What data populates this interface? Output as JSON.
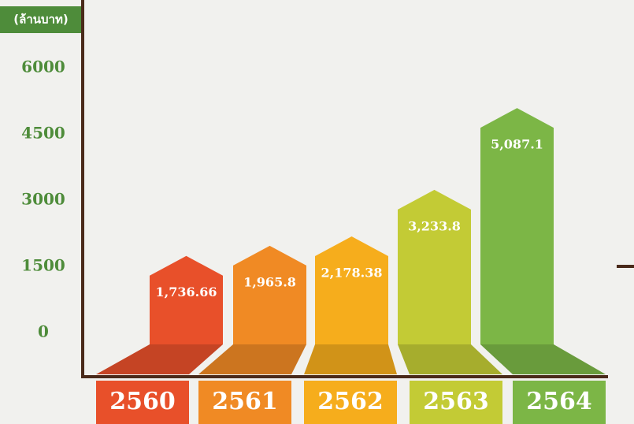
{
  "chart_data": {
    "type": "bar",
    "y_axis_label": "(ล้านบาท)",
    "categories": [
      "2560",
      "2561",
      "2562",
      "2563",
      "2564"
    ],
    "values": [
      1736.66,
      1965.8,
      2178.38,
      3233.8,
      5087.1
    ],
    "value_labels": [
      "1,736.66",
      "1,965.8",
      "2,178.38",
      "3,233.8",
      "5,087.1"
    ],
    "colors": [
      "#e8502a",
      "#f08a24",
      "#f6ad1c",
      "#c3cb35",
      "#7cb646"
    ],
    "ylim": [
      0,
      6000
    ],
    "yticks": [
      0,
      1500,
      3000,
      4500,
      6000
    ]
  }
}
